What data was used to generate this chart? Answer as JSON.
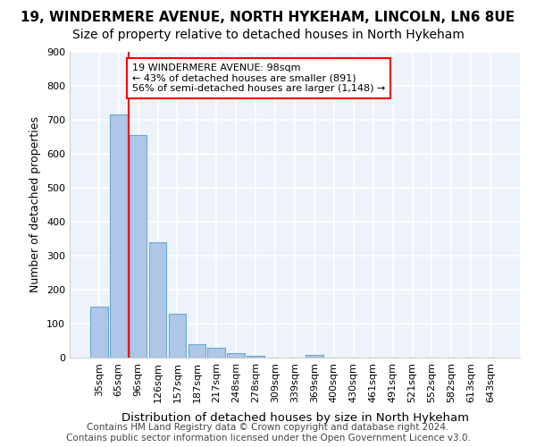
{
  "title1": "19, WINDERMERE AVENUE, NORTH HYKEHAM, LINCOLN, LN6 8UE",
  "title2": "Size of property relative to detached houses in North Hykeham",
  "xlabel": "Distribution of detached houses by size in North Hykeham",
  "ylabel": "Number of detached properties",
  "bin_labels": [
    "35sqm",
    "65sqm",
    "96sqm",
    "126sqm",
    "157sqm",
    "187sqm",
    "217sqm",
    "248sqm",
    "278sqm",
    "309sqm",
    "339sqm",
    "369sqm",
    "400sqm",
    "430sqm",
    "461sqm",
    "491sqm",
    "521sqm",
    "552sqm",
    "582sqm",
    "613sqm",
    "643sqm"
  ],
  "bar_values": [
    150,
    715,
    655,
    340,
    130,
    40,
    30,
    12,
    5,
    0,
    0,
    8,
    0,
    0,
    0,
    0,
    0,
    0,
    0,
    0,
    0
  ],
  "bar_color": "#aec6e8",
  "bar_edge_color": "#6aaad4",
  "annotation_text": "19 WINDERMERE AVENUE: 98sqm\n← 43% of detached houses are smaller (891)\n56% of semi-detached houses are larger (1,148) →",
  "annotation_box_color": "white",
  "annotation_box_edge_color": "red",
  "vline_color": "red",
  "footer_text": "Contains HM Land Registry data © Crown copyright and database right 2024.\nContains public sector information licensed under the Open Government Licence v3.0.",
  "ylim": [
    0,
    900
  ],
  "yticks": [
    0,
    100,
    200,
    300,
    400,
    500,
    600,
    700,
    800,
    900
  ],
  "background_color": "#eef3fb",
  "grid_color": "white",
  "title1_fontsize": 11,
  "title2_fontsize": 10,
  "xlabel_fontsize": 9.5,
  "ylabel_fontsize": 9,
  "tick_fontsize": 8,
  "footer_fontsize": 7.5
}
